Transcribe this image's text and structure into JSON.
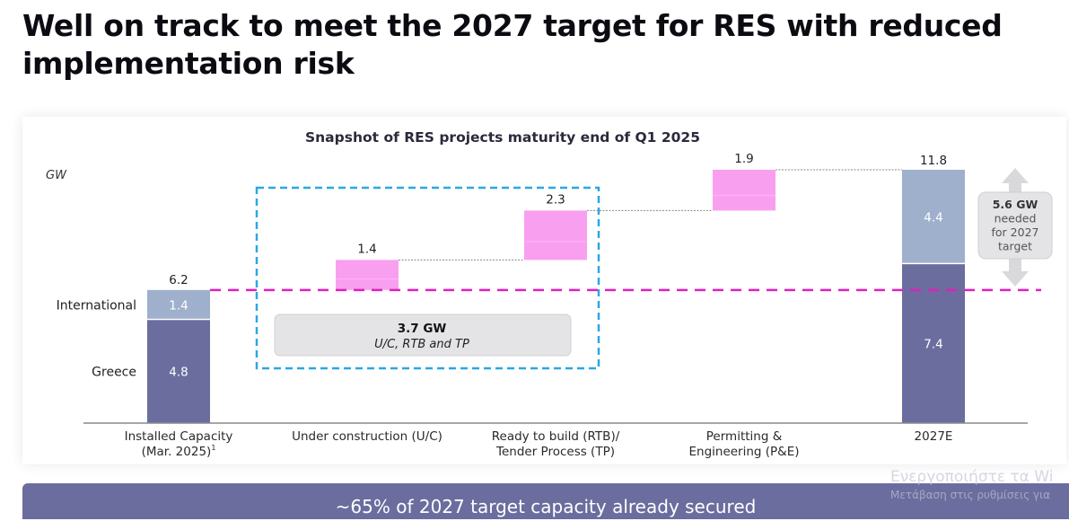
{
  "headline": "Well on track to meet the 2027 target for RES with reduced implementation risk",
  "banner": "~65% of 2027 target capacity already secured",
  "watermark": {
    "line1": "Ενεργοποιήστε τα Wi",
    "line2": "Μετάβαση στις ρυθμίσεις για"
  },
  "colors": {
    "greece": "#6b6d9e",
    "international": "#9fb0cd",
    "pipeline": "#f99ff0",
    "target_line": "#e11fbf",
    "highlight_box": "#2aa7e4",
    "callout": "#e4e4e6"
  },
  "chart_data": {
    "type": "waterfall",
    "title": "Snapshot of RES projects maturity end of Q1 2025",
    "ylabel": "GW",
    "xlabel": "",
    "ylim": [
      0,
      12
    ],
    "grid": false,
    "categories": [
      {
        "lines": [
          "Installed Capacity",
          "(Mar. 2025)"
        ],
        "footnote": "1"
      },
      {
        "lines": [
          "Under construction (U/C)"
        ]
      },
      {
        "lines": [
          "Ready to build (RTB)/",
          "Tender Process (TP)"
        ]
      },
      {
        "lines": [
          "Permitting &",
          "Engineering (P&E)"
        ]
      },
      {
        "lines": [
          "2027E"
        ]
      }
    ],
    "series_labels": [
      "International",
      "Greece"
    ],
    "installed": {
      "greece": 4.8,
      "international": 1.4,
      "total": 6.2
    },
    "steps": [
      {
        "category": 1,
        "value": 1.4,
        "base": 6.2
      },
      {
        "category": 2,
        "value": 2.3,
        "base": 7.6
      },
      {
        "category": 3,
        "value": 1.9,
        "base": 9.9
      }
    ],
    "target_2027": {
      "lower": 7.4,
      "upper": 4.4,
      "total": 11.8
    },
    "value_labels": {
      "installed_total": "6.2",
      "installed_international": "1.4",
      "installed_greece": "4.8",
      "uc": "1.4",
      "rtb": "2.3",
      "pe": "1.9",
      "target_total": "11.8",
      "target_upper": "4.4",
      "target_lower": "7.4"
    },
    "reference_line": {
      "value": 6.2,
      "style": "dashed",
      "meaning": "installed capacity level"
    },
    "annotations": {
      "secured_box": {
        "title": "3.7 GW",
        "subtitle": "U/C, RTB and TP",
        "covers_categories": [
          1,
          2
        ]
      },
      "needed_callout": {
        "lines": [
          "5.6 GW",
          "needed",
          "for 2027",
          "target"
        ]
      }
    }
  }
}
